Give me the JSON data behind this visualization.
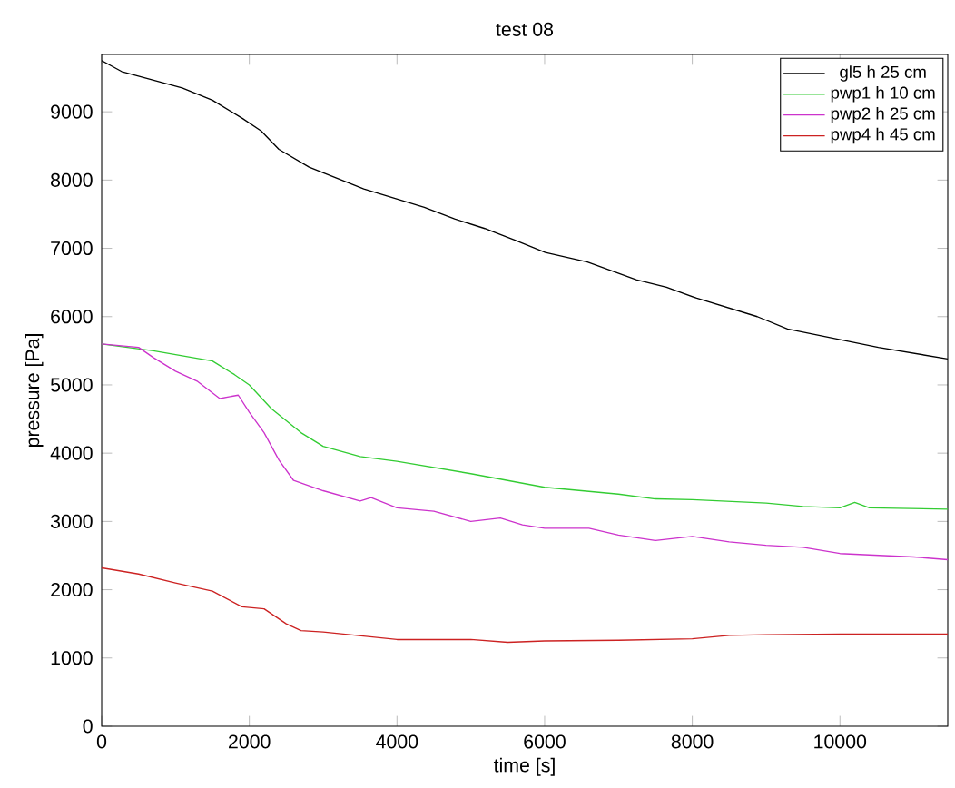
{
  "chart_data": {
    "type": "line",
    "title": "test 08",
    "xlabel": "time [s]",
    "ylabel": "pressure [Pa]",
    "xlim": [
      0,
      11460
    ],
    "ylim": [
      0,
      9840
    ],
    "xticks": [
      0,
      2000,
      4000,
      6000,
      8000,
      10000
    ],
    "yticks": [
      0,
      1000,
      2000,
      3000,
      4000,
      5000,
      6000,
      7000,
      8000,
      9000
    ],
    "grid": false,
    "legend": "top right",
    "marker": "none",
    "line_style": "solid",
    "series": [
      {
        "name": "gl5 h 25 cm",
        "color": "#000000",
        "x": [
          0,
          270,
          1090,
          1500,
          1910,
          2160,
          2400,
          2810,
          3550,
          4370,
          4780,
          5190,
          5600,
          6010,
          6580,
          7240,
          7650,
          8060,
          8880,
          9290,
          10110,
          10520,
          11460
        ],
        "values": [
          9750,
          9590,
          9350,
          9170,
          8900,
          8720,
          8450,
          8190,
          7870,
          7600,
          7430,
          7290,
          7120,
          6940,
          6800,
          6540,
          6430,
          6270,
          6000,
          5820,
          5640,
          5550,
          5380
        ]
      },
      {
        "name": "pwp1 h 10 cm",
        "color": "#33cc33",
        "x": [
          0,
          700,
          1500,
          1800,
          2000,
          2300,
          2700,
          3000,
          3500,
          4000,
          5000,
          5500,
          6000,
          7000,
          7500,
          8000,
          9000,
          9500,
          10000,
          10200,
          10400,
          11460
        ],
        "values": [
          5600,
          5500,
          5350,
          5150,
          5000,
          4650,
          4300,
          4100,
          3950,
          3880,
          3700,
          3600,
          3500,
          3400,
          3330,
          3320,
          3270,
          3220,
          3200,
          3280,
          3200,
          3180
        ]
      },
      {
        "name": "pwp2 h 25 cm",
        "color": "#cc33cc",
        "x": [
          0,
          500,
          700,
          1000,
          1300,
          1600,
          1850,
          2000,
          2200,
          2400,
          2600,
          3000,
          3500,
          3650,
          4000,
          4500,
          5000,
          5400,
          5700,
          6000,
          6600,
          7000,
          7500,
          8000,
          8500,
          9000,
          9500,
          10000,
          11000,
          11460
        ],
        "values": [
          5600,
          5550,
          5400,
          5200,
          5050,
          4800,
          4850,
          4600,
          4300,
          3900,
          3600,
          3450,
          3300,
          3350,
          3200,
          3150,
          3000,
          3050,
          2950,
          2900,
          2900,
          2800,
          2720,
          2780,
          2700,
          2650,
          2620,
          2530,
          2480,
          2440
        ]
      },
      {
        "name": "pwp4 h 45 cm",
        "color": "#cc2222",
        "x": [
          0,
          500,
          1000,
          1500,
          1900,
          2200,
          2500,
          2700,
          3000,
          4000,
          5000,
          5500,
          6000,
          7000,
          8000,
          8500,
          9000,
          10000,
          11460
        ],
        "values": [
          2320,
          2230,
          2100,
          1980,
          1750,
          1720,
          1500,
          1400,
          1380,
          1270,
          1270,
          1230,
          1250,
          1260,
          1280,
          1330,
          1340,
          1350,
          1350
        ]
      }
    ]
  }
}
